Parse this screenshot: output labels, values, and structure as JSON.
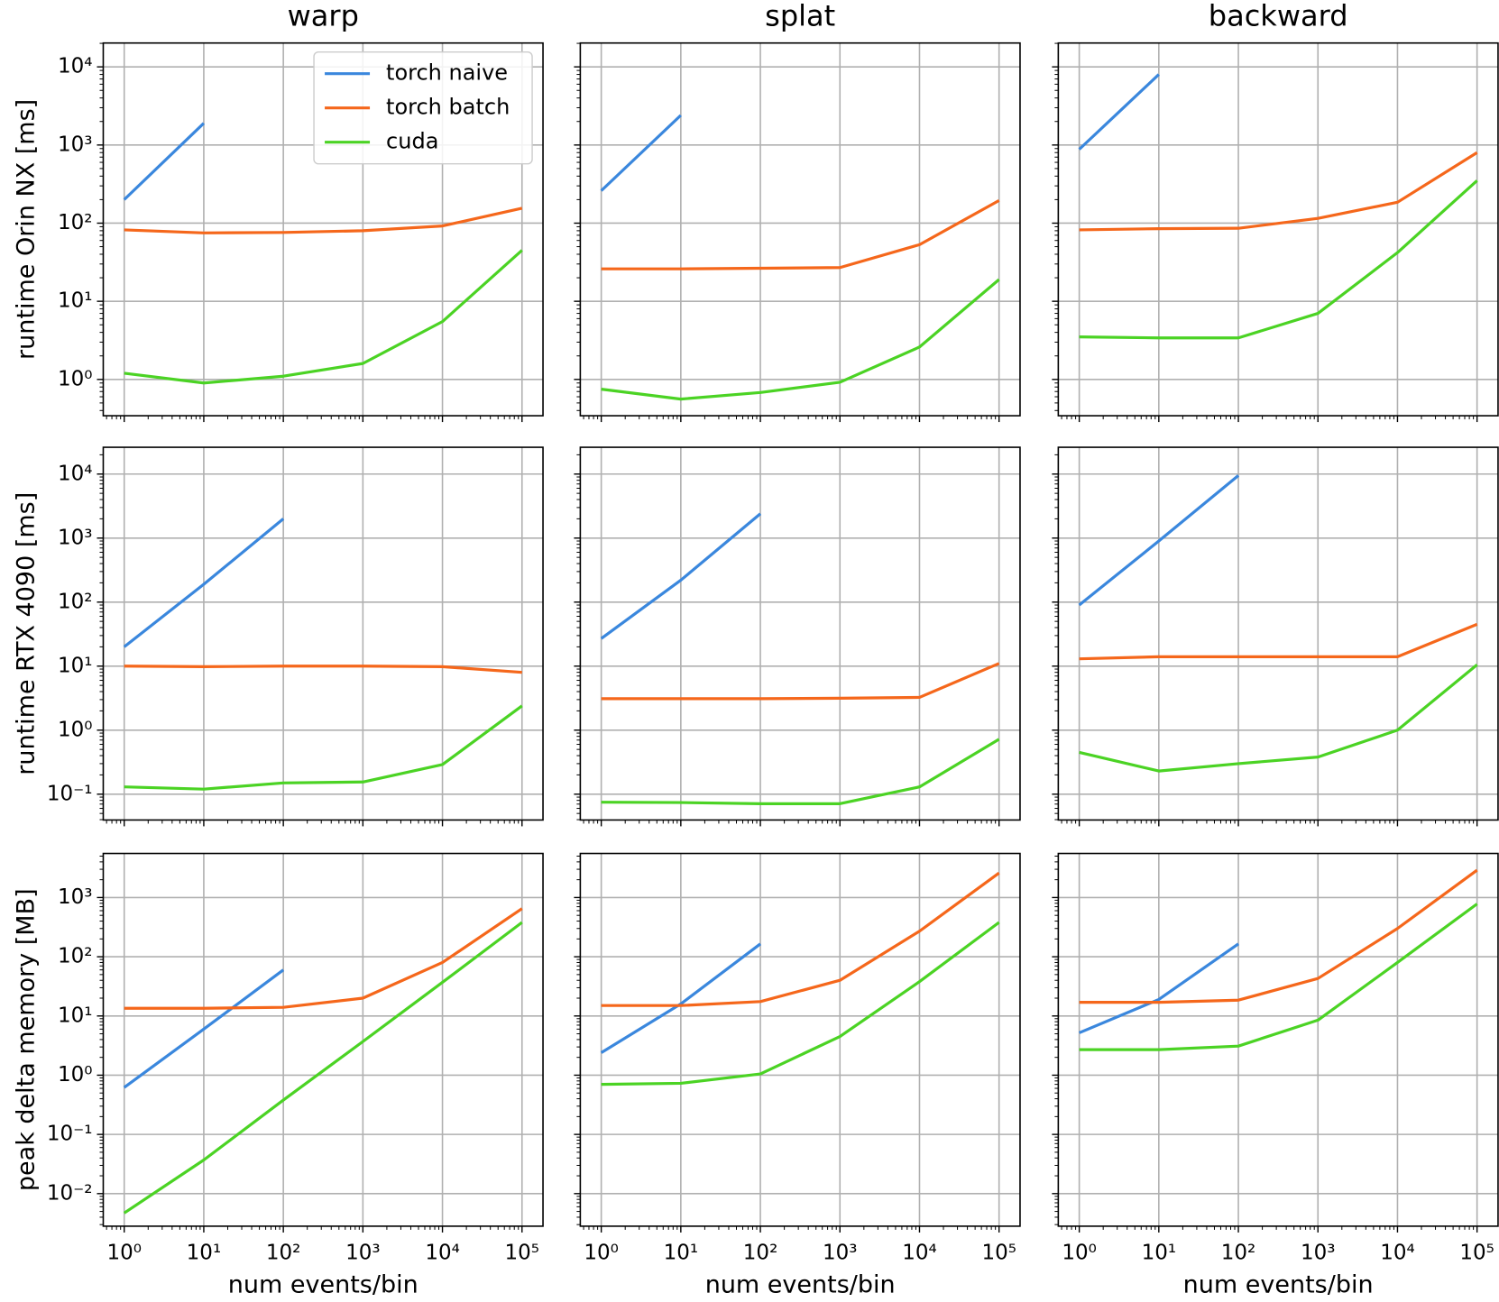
{
  "chart_data": [
    {
      "type": "line",
      "title": "warp",
      "ylabel": "runtime Orin NX [ms]",
      "xscale": "log",
      "yscale": "log",
      "grid": true,
      "legend": "upper right",
      "x": [
        1,
        10,
        100,
        1000,
        10000,
        100000
      ],
      "xlim": [
        0.545,
        183600
      ],
      "xticks": [
        1,
        10,
        100,
        1000,
        10000,
        100000
      ],
      "ylim": [
        0.343,
        20200
      ],
      "yticks": [
        {
          "value": 1,
          "label": "10⁰"
        },
        {
          "value": 10,
          "label": "10¹"
        },
        {
          "value": 100,
          "label": "10²"
        },
        {
          "value": 1000,
          "label": "10³"
        },
        {
          "value": 10000,
          "label": "10⁴"
        }
      ],
      "series": [
        {
          "name": "torch naive",
          "color": "#3a87dd",
          "values": [
            200,
            1900,
            null,
            null,
            null,
            null
          ]
        },
        {
          "name": "torch batch",
          "color": "#f5671b",
          "values": [
            82,
            75,
            76,
            80,
            92,
            155
          ]
        },
        {
          "name": "cuda",
          "color": "#4bd324",
          "values": [
            1.2,
            0.9,
            1.1,
            1.6,
            5.5,
            45
          ]
        }
      ]
    },
    {
      "type": "line",
      "title": "splat",
      "xscale": "log",
      "yscale": "log",
      "grid": true,
      "x": [
        1,
        10,
        100,
        1000,
        10000,
        100000
      ],
      "xlim": [
        0.545,
        183600
      ],
      "xticks": [
        1,
        10,
        100,
        1000,
        10000,
        100000
      ],
      "ylim": [
        0.343,
        20200
      ],
      "yticks": [
        1,
        10,
        100,
        1000,
        10000
      ],
      "series": [
        {
          "color": "#3a87dd",
          "values": [
            260,
            2400,
            null,
            null,
            null,
            null
          ]
        },
        {
          "color": "#f5671b",
          "values": [
            26,
            26,
            26.5,
            27,
            53,
            195
          ]
        },
        {
          "color": "#4bd324",
          "values": [
            0.75,
            0.56,
            0.68,
            0.92,
            2.6,
            19
          ]
        }
      ]
    },
    {
      "type": "line",
      "title": "backward",
      "xscale": "log",
      "yscale": "log",
      "grid": true,
      "x": [
        1,
        10,
        100,
        1000,
        10000,
        100000
      ],
      "xlim": [
        0.545,
        183600
      ],
      "xticks": [
        1,
        10,
        100,
        1000,
        10000,
        100000
      ],
      "ylim": [
        0.343,
        20200
      ],
      "yticks": [
        1,
        10,
        100,
        1000,
        10000
      ],
      "series": [
        {
          "color": "#3a87dd",
          "values": [
            880,
            8000,
            null,
            null,
            null,
            null
          ]
        },
        {
          "color": "#f5671b",
          "values": [
            82,
            85,
            86,
            115,
            185,
            800
          ]
        },
        {
          "color": "#4bd324",
          "values": [
            3.5,
            3.4,
            3.4,
            7,
            42,
            350
          ]
        }
      ]
    },
    {
      "type": "line",
      "ylabel": "runtime RTX 4090 [ms]",
      "xscale": "log",
      "yscale": "log",
      "grid": true,
      "x": [
        1,
        10,
        100,
        1000,
        10000,
        100000
      ],
      "xlim": [
        0.545,
        183600
      ],
      "xticks": [
        1,
        10,
        100,
        1000,
        10000,
        100000
      ],
      "ylim": [
        0.0395,
        26200
      ],
      "yticks": [
        {
          "value": 0.1,
          "label": "10⁻¹"
        },
        {
          "value": 1,
          "label": "10⁰"
        },
        {
          "value": 10,
          "label": "10¹"
        },
        {
          "value": 100,
          "label": "10²"
        },
        {
          "value": 1000,
          "label": "10³"
        },
        {
          "value": 10000,
          "label": "10⁴"
        }
      ],
      "series": [
        {
          "color": "#3a87dd",
          "values": [
            20,
            190,
            2000,
            null,
            null,
            null
          ]
        },
        {
          "color": "#f5671b",
          "values": [
            10,
            9.8,
            10,
            10,
            9.8,
            8
          ]
        },
        {
          "color": "#4bd324",
          "values": [
            0.13,
            0.12,
            0.15,
            0.155,
            0.29,
            2.4
          ]
        }
      ]
    },
    {
      "type": "line",
      "xscale": "log",
      "yscale": "log",
      "grid": true,
      "x": [
        1,
        10,
        100,
        1000,
        10000,
        100000
      ],
      "xlim": [
        0.545,
        183600
      ],
      "xticks": [
        1,
        10,
        100,
        1000,
        10000,
        100000
      ],
      "ylim": [
        0.0395,
        26200
      ],
      "yticks": [
        0.1,
        1,
        10,
        100,
        1000,
        10000
      ],
      "series": [
        {
          "color": "#3a87dd",
          "values": [
            27,
            220,
            2400,
            null,
            null,
            null
          ]
        },
        {
          "color": "#f5671b",
          "values": [
            3.1,
            3.1,
            3.1,
            3.15,
            3.25,
            11
          ]
        },
        {
          "color": "#4bd324",
          "values": [
            0.075,
            0.074,
            0.071,
            0.071,
            0.13,
            0.72
          ]
        }
      ]
    },
    {
      "type": "line",
      "xscale": "log",
      "yscale": "log",
      "grid": true,
      "x": [
        1,
        10,
        100,
        1000,
        10000,
        100000
      ],
      "xlim": [
        0.545,
        183600
      ],
      "xticks": [
        1,
        10,
        100,
        1000,
        10000,
        100000
      ],
      "ylim": [
        0.0395,
        26200
      ],
      "yticks": [
        0.1,
        1,
        10,
        100,
        1000,
        10000
      ],
      "series": [
        {
          "color": "#3a87dd",
          "values": [
            90,
            900,
            9500,
            null,
            null,
            null
          ]
        },
        {
          "color": "#f5671b",
          "values": [
            13,
            14,
            14,
            14,
            14,
            45
          ]
        },
        {
          "color": "#4bd324",
          "values": [
            0.45,
            0.23,
            0.3,
            0.38,
            1.0,
            10.5
          ]
        }
      ]
    },
    {
      "type": "line",
      "ylabel": "peak delta memory [MB]",
      "xlabel": "num events/bin",
      "xscale": "log",
      "yscale": "log",
      "grid": true,
      "x": [
        1,
        10,
        100,
        1000,
        10000,
        100000
      ],
      "xlim": [
        0.545,
        183600
      ],
      "xticks": [
        {
          "value": 1,
          "label": "10⁰"
        },
        {
          "value": 10,
          "label": "10¹"
        },
        {
          "value": 100,
          "label": "10²"
        },
        {
          "value": 1000,
          "label": "10³"
        },
        {
          "value": 10000,
          "label": "10⁴"
        },
        {
          "value": 100000,
          "label": "10⁵"
        }
      ],
      "ylim": [
        0.00282,
        5550
      ],
      "yticks": [
        {
          "value": 0.01,
          "label": "10⁻²"
        },
        {
          "value": 0.1,
          "label": "10⁻¹"
        },
        {
          "value": 1,
          "label": "10⁰"
        },
        {
          "value": 10,
          "label": "10¹"
        },
        {
          "value": 100,
          "label": "10²"
        },
        {
          "value": 1000,
          "label": "10³"
        }
      ],
      "series": [
        {
          "color": "#3a87dd",
          "values": [
            0.62,
            6,
            60,
            null,
            null,
            null
          ]
        },
        {
          "color": "#f5671b",
          "values": [
            13.5,
            13.5,
            14,
            20,
            80,
            650
          ]
        },
        {
          "color": "#4bd324",
          "values": [
            0.0047,
            0.037,
            0.38,
            3.7,
            37,
            380
          ]
        }
      ]
    },
    {
      "type": "line",
      "xlabel": "num events/bin",
      "xscale": "log",
      "yscale": "log",
      "grid": true,
      "x": [
        1,
        10,
        100,
        1000,
        10000,
        100000
      ],
      "xlim": [
        0.545,
        183600
      ],
      "xticks": [
        {
          "value": 1,
          "label": "10⁰"
        },
        {
          "value": 10,
          "label": "10¹"
        },
        {
          "value": 100,
          "label": "10²"
        },
        {
          "value": 1000,
          "label": "10³"
        },
        {
          "value": 10000,
          "label": "10⁴"
        },
        {
          "value": 100000,
          "label": "10⁵"
        }
      ],
      "ylim": [
        0.00282,
        5550
      ],
      "yticks": [
        0.01,
        0.1,
        1,
        10,
        100,
        1000
      ],
      "series": [
        {
          "color": "#3a87dd",
          "values": [
            2.4,
            16,
            165,
            null,
            null,
            null
          ]
        },
        {
          "color": "#f5671b",
          "values": [
            15,
            15,
            17.5,
            40,
            270,
            2600
          ]
        },
        {
          "color": "#4bd324",
          "values": [
            0.7,
            0.73,
            1.05,
            4.5,
            38,
            380
          ]
        }
      ]
    },
    {
      "type": "line",
      "xlabel": "num events/bin",
      "xscale": "log",
      "yscale": "log",
      "grid": true,
      "x": [
        1,
        10,
        100,
        1000,
        10000,
        100000
      ],
      "xlim": [
        0.545,
        183600
      ],
      "xticks": [
        {
          "value": 1,
          "label": "10⁰"
        },
        {
          "value": 10,
          "label": "10¹"
        },
        {
          "value": 100,
          "label": "10²"
        },
        {
          "value": 1000,
          "label": "10³"
        },
        {
          "value": 10000,
          "label": "10⁴"
        },
        {
          "value": 100000,
          "label": "10⁵"
        }
      ],
      "ylim": [
        0.00282,
        5550
      ],
      "yticks": [
        0.01,
        0.1,
        1,
        10,
        100,
        1000
      ],
      "series": [
        {
          "color": "#3a87dd",
          "values": [
            5.2,
            19,
            165,
            null,
            null,
            null
          ]
        },
        {
          "color": "#f5671b",
          "values": [
            17,
            17,
            18.5,
            43,
            300,
            2900
          ]
        },
        {
          "color": "#4bd324",
          "values": [
            2.7,
            2.7,
            3.1,
            8.5,
            80,
            780
          ]
        }
      ]
    }
  ]
}
